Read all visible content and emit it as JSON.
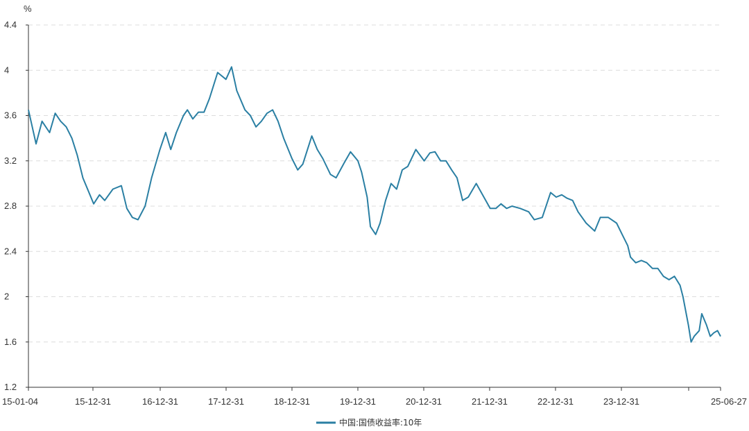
{
  "chart_data": {
    "type": "line",
    "y_unit": "%",
    "ylim": [
      1.2,
      4.4
    ],
    "y_ticks": [
      "1.2",
      "1.6",
      "2",
      "2.4",
      "2.8",
      "3.2",
      "3.6",
      "4",
      "4.4"
    ],
    "x_ticks": [
      "15-01-04",
      "15-12-31",
      "16-12-31",
      "17-12-31",
      "18-12-31",
      "19-12-31",
      "20-12-31",
      "21-12-31",
      "22-12-31",
      "23-12-31",
      "25-06-27"
    ],
    "grid": true,
    "legend_position": "bottom-center",
    "series": [
      {
        "name": "中国:国债收益率:10年",
        "color": "#2a7fa3",
        "x": [
          "2015-01-04",
          "2015-02-15",
          "2015-03-20",
          "2015-05-01",
          "2015-06-01",
          "2015-07-01",
          "2015-08-01",
          "2015-09-01",
          "2015-10-01",
          "2015-11-01",
          "2015-12-31",
          "2016-02-01",
          "2016-03-01",
          "2016-04-15",
          "2016-06-01",
          "2016-07-01",
          "2016-08-01",
          "2016-09-01",
          "2016-10-10",
          "2016-11-15",
          "2016-12-31",
          "2017-02-01",
          "2017-03-01",
          "2017-04-01",
          "2017-05-10",
          "2017-06-01",
          "2017-07-01",
          "2017-08-01",
          "2017-09-01",
          "2017-10-01",
          "2017-11-15",
          "2017-12-31",
          "2018-01-31",
          "2018-03-01",
          "2018-04-15",
          "2018-05-15",
          "2018-06-15",
          "2018-07-15",
          "2018-08-15",
          "2018-09-15",
          "2018-10-15",
          "2018-11-15",
          "2018-12-31",
          "2019-02-01",
          "2019-03-01",
          "2019-04-20",
          "2019-05-20",
          "2019-06-20",
          "2019-08-01",
          "2019-09-01",
          "2019-10-15",
          "2019-11-20",
          "2019-12-31",
          "2020-01-20",
          "2020-02-20",
          "2020-03-09",
          "2020-04-07",
          "2020-05-01",
          "2020-06-01",
          "2020-07-01",
          "2020-08-01",
          "2020-09-01",
          "2020-10-01",
          "2020-11-15",
          "2020-12-31",
          "2021-02-01",
          "2021-03-01",
          "2021-04-01",
          "2021-05-01",
          "2021-06-01",
          "2021-07-01",
          "2021-08-01",
          "2021-09-01",
          "2021-10-15",
          "2021-12-31",
          "2022-02-01",
          "2022-03-01",
          "2022-04-01",
          "2022-05-01",
          "2022-06-15",
          "2022-08-01",
          "2022-09-01",
          "2022-10-15",
          "2022-11-30",
          "2022-12-31",
          "2023-01-31",
          "2023-03-01",
          "2023-04-01",
          "2023-05-01",
          "2023-06-15",
          "2023-08-01",
          "2023-09-01",
          "2023-10-15",
          "2023-11-30",
          "2023-12-31",
          "2024-01-31",
          "2024-02-15",
          "2024-03-15",
          "2024-04-15",
          "2024-05-15",
          "2024-06-15",
          "2024-07-15",
          "2024-08-15",
          "2024-09-15",
          "2024-10-15",
          "2024-11-15",
          "2024-12-01",
          "2024-12-31",
          "2025-01-15",
          "2025-02-01",
          "2025-03-01",
          "2025-03-15",
          "2025-04-10",
          "2025-05-01",
          "2025-05-20",
          "2025-06-10",
          "2025-06-27"
        ],
        "y": [
          3.65,
          3.35,
          3.55,
          3.45,
          3.62,
          3.55,
          3.5,
          3.4,
          3.25,
          3.05,
          2.82,
          2.9,
          2.85,
          2.95,
          2.98,
          2.78,
          2.7,
          2.68,
          2.8,
          3.05,
          3.3,
          3.45,
          3.3,
          3.45,
          3.6,
          3.65,
          3.57,
          3.63,
          3.63,
          3.75,
          3.98,
          3.92,
          4.03,
          3.82,
          3.65,
          3.6,
          3.5,
          3.55,
          3.62,
          3.65,
          3.55,
          3.4,
          3.22,
          3.12,
          3.17,
          3.42,
          3.3,
          3.22,
          3.08,
          3.05,
          3.18,
          3.28,
          3.2,
          3.1,
          2.88,
          2.62,
          2.55,
          2.65,
          2.85,
          3.0,
          2.95,
          3.12,
          3.15,
          3.3,
          3.2,
          3.27,
          3.28,
          3.2,
          3.2,
          3.12,
          3.05,
          2.85,
          2.88,
          3.0,
          2.78,
          2.78,
          2.82,
          2.78,
          2.8,
          2.78,
          2.75,
          2.68,
          2.7,
          2.92,
          2.88,
          2.9,
          2.87,
          2.85,
          2.75,
          2.65,
          2.58,
          2.7,
          2.7,
          2.65,
          2.55,
          2.45,
          2.35,
          2.3,
          2.32,
          2.3,
          2.25,
          2.25,
          2.18,
          2.15,
          2.18,
          2.1,
          2.0,
          1.75,
          1.6,
          1.65,
          1.7,
          1.85,
          1.75,
          1.65,
          1.68,
          1.7,
          1.65
        ]
      }
    ]
  }
}
